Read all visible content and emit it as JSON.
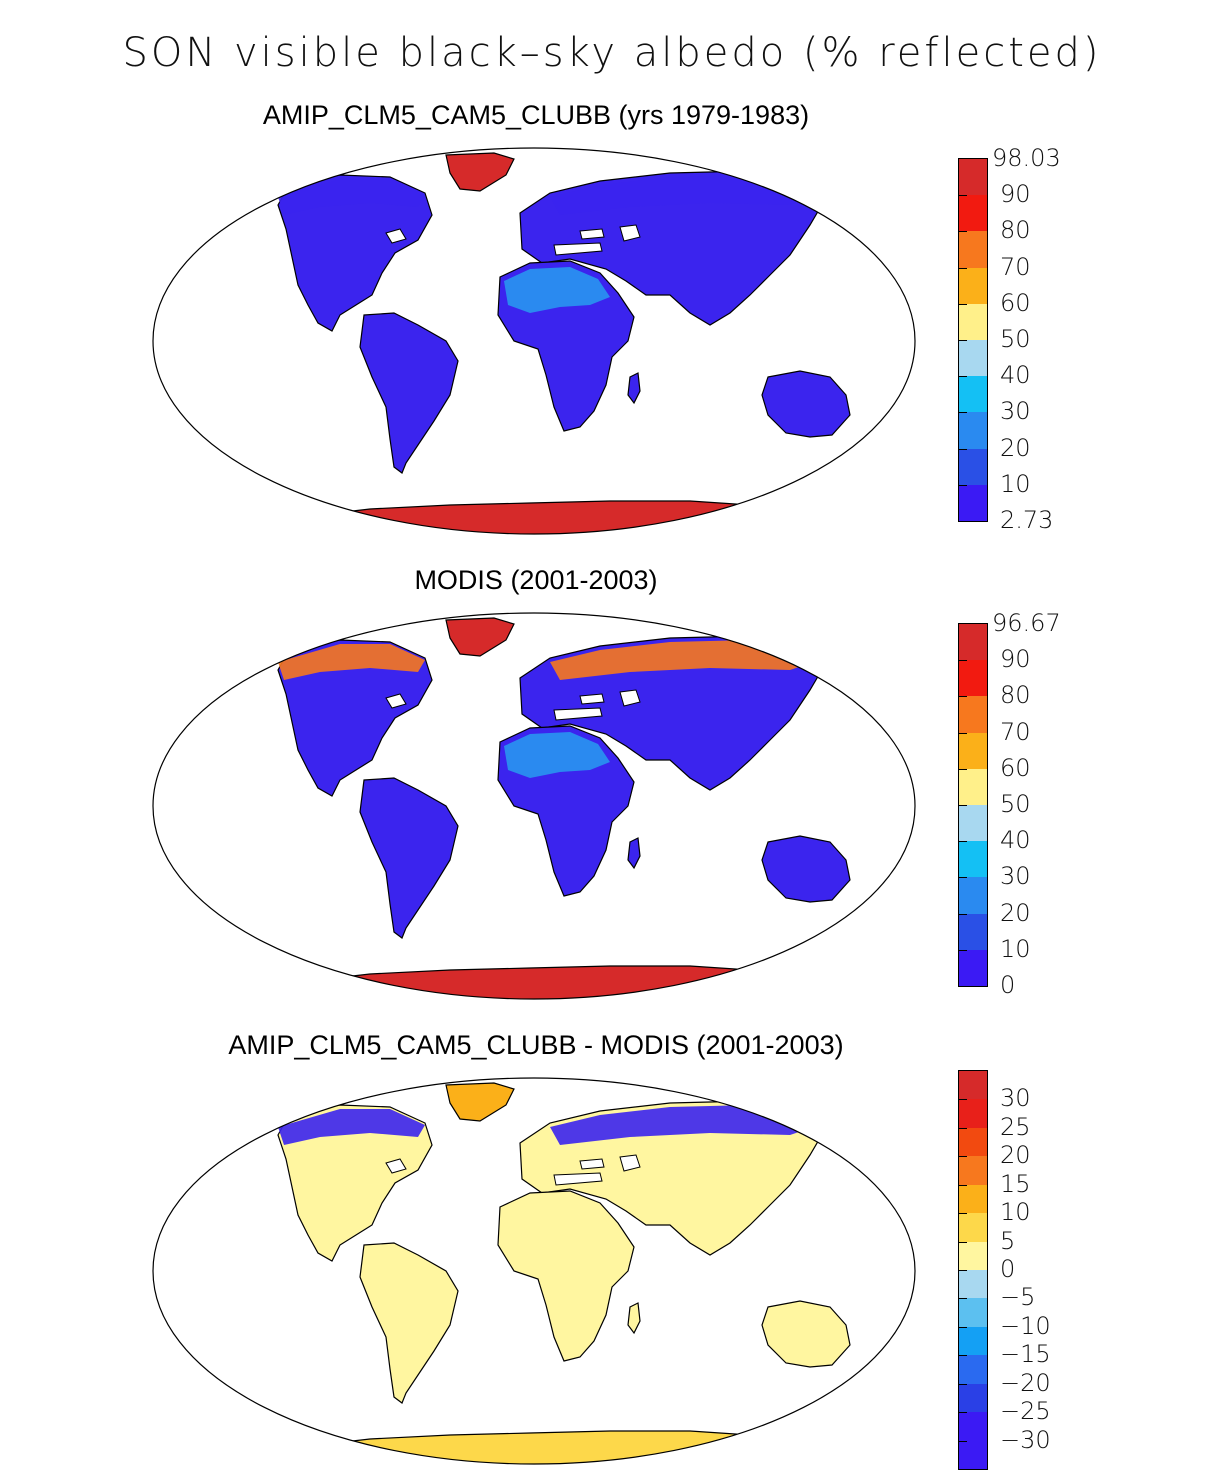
{
  "title": "SON visible black–sky albedo (% reflected)",
  "panels": [
    {
      "title": "AMIP_CLM5_CAM5_CLUBB (yrs 1979-1983)",
      "colorbar": {
        "labels": [
          "98.03",
          "90",
          "80",
          "70",
          "60",
          "50",
          "40",
          "30",
          "20",
          "10",
          "2.73"
        ],
        "colors": [
          "#d62a2a",
          "#f21a10",
          "#f7781e",
          "#fbb019",
          "#fff08a",
          "#a8d8f0",
          "#14c0f4",
          "#2a8af0",
          "#2a50e6",
          "#3b1af4"
        ]
      },
      "regions": {
        "land": "#3b24ee",
        "desert": "#2a8af0",
        "greenland": "#d62a2a",
        "antarctica": "#d62a2a",
        "arctic_fringe": "#3b24ee"
      }
    },
    {
      "title": "MODIS (2001-2003)",
      "colorbar": {
        "labels": [
          "96.67",
          "90",
          "80",
          "70",
          "60",
          "50",
          "40",
          "30",
          "20",
          "10",
          "0"
        ],
        "colors": [
          "#d62a2a",
          "#f21a10",
          "#f7781e",
          "#fbb019",
          "#fff08a",
          "#a8d8f0",
          "#14c0f4",
          "#2a8af0",
          "#2a50e6",
          "#3b1af4"
        ]
      },
      "regions": {
        "land": "#3b24ee",
        "desert": "#2a8af0",
        "greenland": "#d62a2a",
        "antarctica": "#d62a2a",
        "arctic_fringe": "#f7781e"
      }
    },
    {
      "title": "AMIP_CLM5_CAM5_CLUBB - MODIS (2001-2003)",
      "colorbar": {
        "labels": [
          "30",
          "25",
          "20",
          "15",
          "10",
          "5",
          "0",
          "−5",
          "−10",
          "−15",
          "−20",
          "−25",
          "−30"
        ],
        "colors": [
          "#d62a2a",
          "#e8201a",
          "#f24a10",
          "#f7781e",
          "#fbb019",
          "#fdd84a",
          "#fff6a0",
          "#a8d8f0",
          "#5cc0f0",
          "#14a0f4",
          "#2a6af0",
          "#2a40e6",
          "#3b1af4",
          "#3b1af4"
        ]
      },
      "regions": {
        "land": "#fff6a0",
        "desert": "#fff6a0",
        "greenland": "#fbb019",
        "antarctica": "#fdd84a",
        "arctic_fringe": "#3b24ee"
      }
    }
  ]
}
